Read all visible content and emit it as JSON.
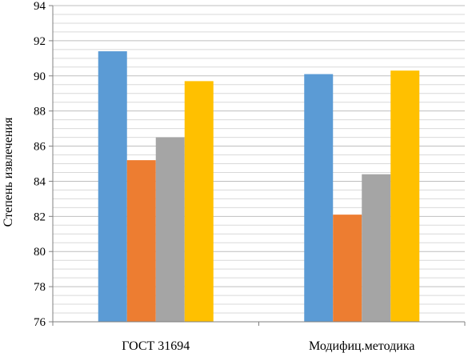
{
  "chart_data": {
    "type": "bar",
    "title": "",
    "xlabel": "",
    "ylabel": "Степень извлечения",
    "ylim": [
      76,
      94
    ],
    "yticks": [
      76,
      78,
      80,
      82,
      84,
      86,
      88,
      90,
      92,
      94
    ],
    "grid": true,
    "legend": "none",
    "categories": [
      "ГОСТ 31694",
      "Модифиц.методика"
    ],
    "series": [
      {
        "color": "#5B9BD5",
        "values": [
          91.4,
          90.1
        ]
      },
      {
        "color": "#ED7D31",
        "values": [
          85.2,
          82.1
        ]
      },
      {
        "color": "#A5A5A5",
        "values": [
          86.5,
          84.4
        ]
      },
      {
        "color": "#FFC000",
        "values": [
          89.7,
          90.3
        ]
      }
    ]
  }
}
